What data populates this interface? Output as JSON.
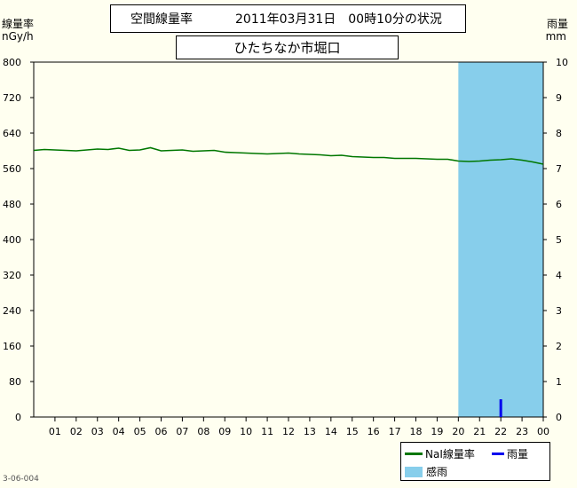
{
  "header": {
    "title": "空間線量率",
    "datetime": "2011年03月31日　00時10分の状況",
    "station": "ひたちなか市堀口"
  },
  "axes": {
    "left_label": "線量率",
    "left_unit": "nGy/h",
    "right_label": "雨量",
    "right_unit": "mm"
  },
  "legend": {
    "nai_label": "NaI線量率",
    "rain_label": "雨量",
    "rain_sense_label": "感雨"
  },
  "footer_code": "3-06-004",
  "colors": {
    "plot_bg": "#fffff0",
    "dose_line": "#007700",
    "rain_bar": "#0000ee",
    "rain_sense": "#87ceeb"
  },
  "chart_data": {
    "type": "line",
    "x_tick_labels": [
      "01",
      "02",
      "03",
      "04",
      "05",
      "06",
      "07",
      "08",
      "09",
      "10",
      "11",
      "12",
      "13",
      "14",
      "15",
      "16",
      "17",
      "18",
      "19",
      "20",
      "21",
      "22",
      "23",
      "00"
    ],
    "y_left": {
      "ticks": [
        0,
        80,
        160,
        240,
        320,
        400,
        480,
        560,
        640,
        720,
        800
      ],
      "range": [
        0,
        800
      ]
    },
    "y_right": {
      "ticks": [
        0,
        1,
        2,
        3,
        4,
        5,
        6,
        7,
        8,
        9,
        10
      ],
      "range": [
        0,
        10
      ]
    },
    "series": [
      {
        "name": "NaI線量率",
        "axis": "left",
        "x": [
          0,
          0.5,
          1,
          1.5,
          2,
          2.5,
          3,
          3.5,
          4,
          4.5,
          5,
          5.5,
          6,
          6.5,
          7,
          7.5,
          8,
          8.5,
          9,
          9.5,
          10,
          10.5,
          11,
          11.5,
          12,
          12.5,
          13,
          13.5,
          14,
          14.5,
          15,
          15.5,
          16,
          16.5,
          17,
          17.5,
          18,
          18.5,
          19,
          19.5,
          20,
          20.5,
          21,
          21.5,
          22,
          22.5,
          23,
          23.5,
          24
        ],
        "values": [
          601,
          603,
          602,
          601,
          600,
          602,
          604,
          603,
          606,
          601,
          602,
          607,
          600,
          601,
          602,
          599,
          600,
          601,
          597,
          596,
          595,
          594,
          593,
          594,
          595,
          593,
          592,
          591,
          589,
          590,
          587,
          586,
          585,
          585,
          583,
          583,
          583,
          582,
          581,
          581,
          577,
          576,
          577,
          579,
          580,
          582,
          579,
          575,
          570
        ]
      },
      {
        "name": "雨量",
        "axis": "right",
        "type": "bar",
        "x": [
          22
        ],
        "values": [
          0.5
        ]
      }
    ],
    "rain_sense_periods": [
      {
        "start": 20,
        "end": 24,
        "label": "感雨"
      }
    ]
  }
}
